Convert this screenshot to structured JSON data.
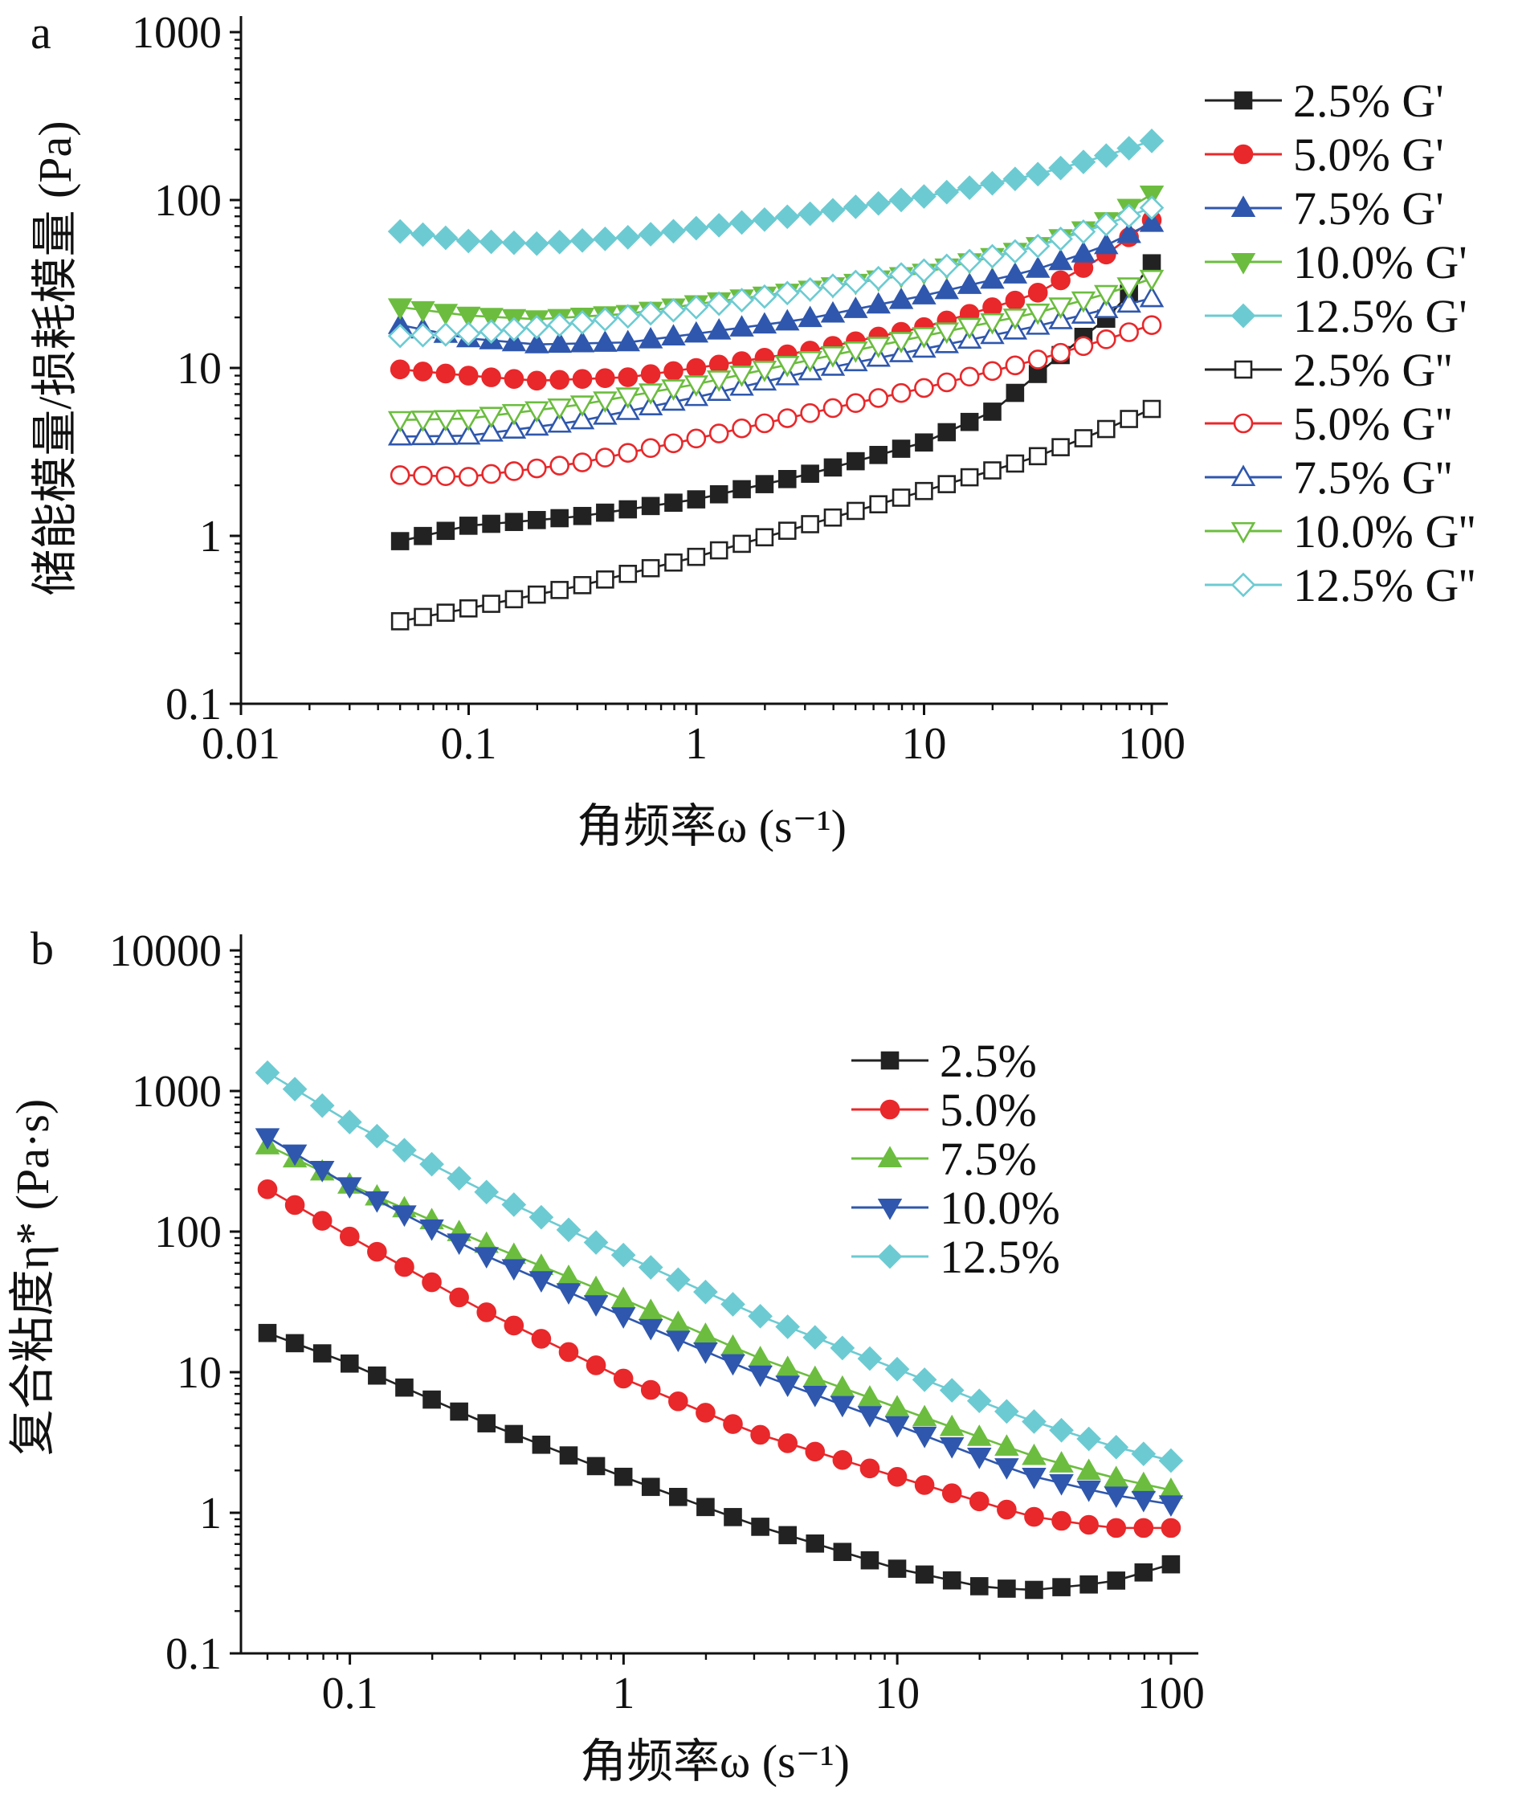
{
  "colors": {
    "c2_5": "#222222",
    "c5_0": "#e8282b",
    "c7_5_a": "#2f57ad",
    "c10_0_a": "#6cbd3f",
    "c12_5": "#6ccbd2",
    "c7_5_b": "#6cbd3f",
    "c10_0_b": "#2f57ad"
  },
  "chart_data": [
    {
      "type": "scatter",
      "panel_label": "a",
      "xlabel": "角频率ω (s⁻¹)",
      "ylabel": "储能模量/损耗模量 (Pa)",
      "x_scale": "log",
      "y_scale": "log",
      "xlim": [
        0.01,
        100
      ],
      "ylim": [
        0.1,
        1000
      ],
      "x_ticks": [
        0.01,
        0.1,
        1,
        10,
        100
      ],
      "x_tick_labels": [
        "0.01",
        "0.1",
        "1",
        "10",
        "100"
      ],
      "y_ticks": [
        0.1,
        1,
        10,
        100,
        1000
      ],
      "y_tick_labels": [
        "0.1",
        "1",
        "10",
        "100",
        "1000"
      ],
      "grid": false,
      "legend_position": "right",
      "x_range_data": [
        0.05,
        100
      ],
      "series": [
        {
          "name": "2.5% G'",
          "color": "#222222",
          "marker": "square",
          "filled": true,
          "anchors": [
            [
              0.05,
              0.93
            ],
            [
              0.1,
              1.15
            ],
            [
              0.3,
              1.3
            ],
            [
              1,
              1.65
            ],
            [
              3,
              2.3
            ],
            [
              10,
              3.6
            ],
            [
              20,
              5.5
            ],
            [
              40,
              12
            ],
            [
              70,
              22
            ],
            [
              100,
              42
            ]
          ]
        },
        {
          "name": "5.0% G'",
          "color": "#e8282b",
          "marker": "circle",
          "filled": true,
          "anchors": [
            [
              0.05,
              9.8
            ],
            [
              0.1,
              9.0
            ],
            [
              0.2,
              8.4
            ],
            [
              0.5,
              8.8
            ],
            [
              1,
              10
            ],
            [
              3,
              12.5
            ],
            [
              10,
              17.5
            ],
            [
              30,
              27
            ],
            [
              60,
              45
            ],
            [
              100,
              76
            ]
          ]
        },
        {
          "name": "7.5% G'",
          "color": "#2f57ad",
          "marker": "triangle-up",
          "filled": true,
          "anchors": [
            [
              0.05,
              18
            ],
            [
              0.1,
              15
            ],
            [
              0.2,
              13.8
            ],
            [
              0.5,
              14.2
            ],
            [
              1,
              16
            ],
            [
              3,
              19.5
            ],
            [
              10,
              27
            ],
            [
              30,
              38
            ],
            [
              60,
              52
            ],
            [
              100,
              73
            ]
          ]
        },
        {
          "name": "10.0% G'",
          "color": "#6cbd3f",
          "marker": "triangle-down",
          "filled": true,
          "anchors": [
            [
              0.05,
              23
            ],
            [
              0.1,
              20.5
            ],
            [
              0.2,
              19.5
            ],
            [
              0.5,
              21
            ],
            [
              1,
              24
            ],
            [
              3,
              29
            ],
            [
              10,
              37
            ],
            [
              30,
              52
            ],
            [
              60,
              72
            ],
            [
              100,
              108
            ]
          ]
        },
        {
          "name": "12.5% G'",
          "color": "#6ccbd2",
          "marker": "diamond",
          "filled": true,
          "anchors": [
            [
              0.05,
              65
            ],
            [
              0.1,
              57
            ],
            [
              0.2,
              55
            ],
            [
              0.5,
              60
            ],
            [
              1,
              68
            ],
            [
              3,
              82
            ],
            [
              10,
              105
            ],
            [
              30,
              140
            ],
            [
              60,
              180
            ],
            [
              100,
              225
            ]
          ]
        },
        {
          "name": "2.5% G''",
          "color": "#222222",
          "marker": "square",
          "filled": false,
          "anchors": [
            [
              0.05,
              0.31
            ],
            [
              0.1,
              0.37
            ],
            [
              0.3,
              0.5
            ],
            [
              1,
              0.75
            ],
            [
              3,
              1.15
            ],
            [
              10,
              1.85
            ],
            [
              30,
              2.9
            ],
            [
              60,
              4.2
            ],
            [
              100,
              5.7
            ]
          ]
        },
        {
          "name": "5.0% G''",
          "color": "#e8282b",
          "marker": "circle",
          "filled": false,
          "anchors": [
            [
              0.05,
              2.3
            ],
            [
              0.1,
              2.25
            ],
            [
              0.3,
              2.7
            ],
            [
              1,
              3.8
            ],
            [
              3,
              5.3
            ],
            [
              10,
              7.6
            ],
            [
              30,
              11
            ],
            [
              60,
              14.5
            ],
            [
              100,
              18
            ]
          ]
        },
        {
          "name": "7.5% G''",
          "color": "#2f57ad",
          "marker": "triangle-up",
          "filled": false,
          "anchors": [
            [
              0.05,
              3.9
            ],
            [
              0.1,
              3.95
            ],
            [
              0.3,
              4.8
            ],
            [
              1,
              6.7
            ],
            [
              3,
              9.4
            ],
            [
              10,
              13
            ],
            [
              30,
              17.5
            ],
            [
              60,
              22
            ],
            [
              100,
              26
            ]
          ]
        },
        {
          "name": "10.0% G''",
          "color": "#6cbd3f",
          "marker": "triangle-down",
          "filled": false,
          "anchors": [
            [
              0.05,
              4.9
            ],
            [
              0.1,
              5.0
            ],
            [
              0.3,
              6.0
            ],
            [
              1,
              8.0
            ],
            [
              3,
              11
            ],
            [
              10,
              15.5
            ],
            [
              30,
              21
            ],
            [
              60,
              27
            ],
            [
              100,
              34
            ]
          ]
        },
        {
          "name": "12.5% G''",
          "color": "#6ccbd2",
          "marker": "diamond",
          "filled": false,
          "anchors": [
            [
              0.05,
              15.5
            ],
            [
              0.1,
              16
            ],
            [
              0.3,
              18.5
            ],
            [
              1,
              23
            ],
            [
              3,
              29
            ],
            [
              10,
              38
            ],
            [
              30,
              52
            ],
            [
              60,
              70
            ],
            [
              100,
              90
            ]
          ]
        }
      ]
    },
    {
      "type": "line",
      "panel_label": "b",
      "xlabel": "角频率ω (s⁻¹)",
      "ylabel": "复合粘度η* (Pa·s)",
      "x_scale": "log",
      "y_scale": "log",
      "xlim": [
        0.04,
        110
      ],
      "ylim": [
        0.1,
        10000
      ],
      "x_ticks": [
        0.1,
        1,
        10,
        100
      ],
      "x_tick_labels": [
        "0.1",
        "1",
        "10",
        "100"
      ],
      "y_ticks": [
        0.1,
        1,
        10,
        100,
        1000,
        10000
      ],
      "y_tick_labels": [
        "0.1",
        "1",
        "10",
        "100",
        "1000",
        "10000"
      ],
      "grid": false,
      "legend_position": "top-right",
      "x_range_data": [
        0.05,
        100
      ],
      "series": [
        {
          "name": "2.5%",
          "color": "#222222",
          "marker": "square",
          "filled": true,
          "anchors": [
            [
              0.05,
              19
            ],
            [
              0.1,
              11.5
            ],
            [
              0.3,
              4.5
            ],
            [
              1,
              1.8
            ],
            [
              3,
              0.82
            ],
            [
              10,
              0.4
            ],
            [
              20,
              0.3
            ],
            [
              30,
              0.28
            ],
            [
              60,
              0.32
            ],
            [
              100,
              0.43
            ]
          ]
        },
        {
          "name": "5.0%",
          "color": "#e8282b",
          "marker": "circle",
          "filled": true,
          "anchors": [
            [
              0.05,
              200
            ],
            [
              0.1,
              92
            ],
            [
              0.3,
              28
            ],
            [
              1,
              9
            ],
            [
              3,
              3.7
            ],
            [
              10,
              1.8
            ],
            [
              30,
              0.95
            ],
            [
              60,
              0.78
            ],
            [
              100,
              0.78
            ]
          ]
        },
        {
          "name": "7.5%",
          "color": "#6cbd3f",
          "marker": "triangle-up",
          "filled": true,
          "anchors": [
            [
              0.05,
              410
            ],
            [
              0.1,
              215
            ],
            [
              0.3,
              85
            ],
            [
              1,
              33
            ],
            [
              3,
              13
            ],
            [
              10,
              5.6
            ],
            [
              30,
              2.6
            ],
            [
              60,
              1.8
            ],
            [
              100,
              1.45
            ]
          ]
        },
        {
          "name": "10.0%",
          "color": "#2f57ad",
          "marker": "triangle-down",
          "filled": true,
          "anchors": [
            [
              0.05,
              470
            ],
            [
              0.1,
              210
            ],
            [
              0.3,
              70
            ],
            [
              1,
              25
            ],
            [
              3,
              10
            ],
            [
              10,
              4.2
            ],
            [
              30,
              1.85
            ],
            [
              60,
              1.35
            ],
            [
              100,
              1.15
            ]
          ]
        },
        {
          "name": "12.5%",
          "color": "#6ccbd2",
          "marker": "diamond",
          "filled": true,
          "anchors": [
            [
              0.05,
              1350
            ],
            [
              0.1,
              600
            ],
            [
              0.3,
              200
            ],
            [
              1,
              68
            ],
            [
              3,
              26
            ],
            [
              10,
              10.5
            ],
            [
              30,
              4.6
            ],
            [
              60,
              3.0
            ],
            [
              100,
              2.35
            ]
          ]
        }
      ]
    }
  ]
}
